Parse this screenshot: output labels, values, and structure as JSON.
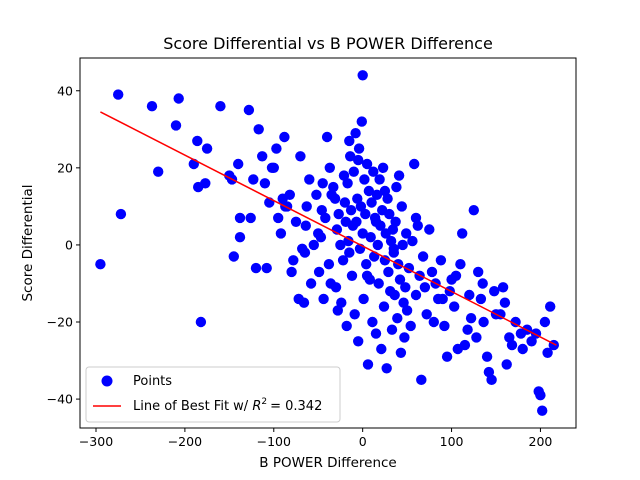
{
  "chart_data": {
    "type": "scatter",
    "title": "Score Differential vs B POWER Difference",
    "xlabel": "B POWER Difference",
    "ylabel": "Score Differential",
    "xlim": [
      -318,
      240
    ],
    "ylim": [
      -47.5,
      48.5
    ],
    "xticks": [
      -300,
      -200,
      -100,
      0,
      100,
      200
    ],
    "yticks": [
      -40,
      -20,
      0,
      20,
      40
    ],
    "grid": false,
    "legend_position": "lower-left",
    "colors": {
      "points": "#0000ff",
      "fit_line": "#ff0000",
      "axes": "#000000"
    },
    "series": [
      {
        "name": "Points",
        "type": "scatter",
        "points": [
          [
            -295,
            -5
          ],
          [
            -275,
            39
          ],
          [
            -272,
            8
          ],
          [
            -237,
            36
          ],
          [
            -230,
            19
          ],
          [
            -207,
            38
          ],
          [
            -190,
            21
          ],
          [
            -186,
            27
          ],
          [
            -185,
            15
          ],
          [
            -182,
            -20
          ],
          [
            -177,
            16
          ],
          [
            -160,
            36
          ],
          [
            -147,
            17
          ],
          [
            -145,
            -3
          ],
          [
            -140,
            21
          ],
          [
            -138,
            2
          ],
          [
            -138,
            7
          ],
          [
            -128,
            35
          ],
          [
            -126,
            7
          ],
          [
            -123,
            17
          ],
          [
            -120,
            -6
          ],
          [
            -117,
            30
          ],
          [
            -113,
            23
          ],
          [
            -110,
            16
          ],
          [
            -108,
            -6
          ],
          [
            -105,
            11
          ],
          [
            -102,
            20
          ],
          [
            -100,
            20
          ],
          [
            -97,
            25
          ],
          [
            -95,
            7
          ],
          [
            -92,
            3
          ],
          [
            -90,
            12
          ],
          [
            -88,
            28
          ],
          [
            -87,
            10
          ],
          [
            -85,
            10
          ],
          [
            -82,
            13
          ],
          [
            -80,
            -7
          ],
          [
            -78,
            -4
          ],
          [
            -72,
            -14
          ],
          [
            -70,
            23
          ],
          [
            -68,
            -1
          ],
          [
            -66,
            -15
          ],
          [
            -64,
            5
          ],
          [
            -63,
            10
          ],
          [
            -60,
            17
          ],
          [
            -58,
            -10
          ],
          [
            -55,
            0
          ],
          [
            -52,
            13
          ],
          [
            -50,
            3
          ],
          [
            -49,
            -7
          ],
          [
            -47,
            2
          ],
          [
            -46,
            9
          ],
          [
            -44,
            -14
          ],
          [
            -42,
            7
          ],
          [
            -40,
            28
          ],
          [
            -38,
            -5
          ],
          [
            -37,
            20
          ],
          [
            -36,
            -10
          ],
          [
            -35,
            13
          ],
          [
            -33,
            15
          ],
          [
            -31,
            12
          ],
          [
            -30,
            -11
          ],
          [
            -29,
            4
          ],
          [
            -28,
            -17
          ],
          [
            -27,
            8
          ],
          [
            -25,
            0
          ],
          [
            -24,
            -15
          ],
          [
            -22,
            -4
          ],
          [
            -21,
            18
          ],
          [
            -20,
            11
          ],
          [
            -19,
            6
          ],
          [
            -18,
            -21
          ],
          [
            -17,
            16
          ],
          [
            -16,
            1
          ],
          [
            -15,
            -2
          ],
          [
            -14,
            23
          ],
          [
            -13,
            9
          ],
          [
            -12,
            -8
          ],
          [
            -11,
            5
          ],
          [
            -10,
            19
          ],
          [
            -9,
            -18
          ],
          [
            -8,
            29
          ],
          [
            -7,
            6
          ],
          [
            -6,
            12
          ],
          [
            -5,
            -25
          ],
          [
            -4,
            25
          ],
          [
            -3,
            -1
          ],
          [
            -2,
            10
          ],
          [
            -1,
            32
          ],
          [
            0,
            44
          ],
          [
            0,
            3
          ],
          [
            1,
            -14
          ],
          [
            2,
            17
          ],
          [
            3,
            8
          ],
          [
            4,
            -5
          ],
          [
            5,
            21
          ],
          [
            6,
            -31
          ],
          [
            7,
            14
          ],
          [
            8,
            -9
          ],
          [
            9,
            2
          ],
          [
            10,
            11
          ],
          [
            11,
            -20
          ],
          [
            12,
            19
          ],
          [
            13,
            -3
          ],
          [
            14,
            7
          ],
          [
            15,
            -23
          ],
          [
            16,
            13
          ],
          [
            17,
            0
          ],
          [
            18,
            -10
          ],
          [
            19,
            17
          ],
          [
            20,
            5
          ],
          [
            21,
            -27
          ],
          [
            22,
            9
          ],
          [
            23,
            20
          ],
          [
            24,
            -16
          ],
          [
            25,
            -4
          ],
          [
            26,
            3
          ],
          [
            27,
            -32
          ],
          [
            28,
            12
          ],
          [
            29,
            -7
          ],
          [
            30,
            8
          ],
          [
            31,
            -12
          ],
          [
            32,
            1
          ],
          [
            33,
            -22
          ],
          [
            34,
            4
          ],
          [
            35,
            -2
          ],
          [
            36,
            -13
          ],
          [
            37,
            6
          ],
          [
            38,
            15
          ],
          [
            39,
            -19
          ],
          [
            40,
            -5
          ],
          [
            41,
            18
          ],
          [
            42,
            -9
          ],
          [
            43,
            -28
          ],
          [
            44,
            10
          ],
          [
            45,
            0
          ],
          [
            46,
            -15
          ],
          [
            47,
            -24
          ],
          [
            48,
            -11
          ],
          [
            49,
            3
          ],
          [
            50,
            -17
          ],
          [
            52,
            -6
          ],
          [
            54,
            -21
          ],
          [
            56,
            1
          ],
          [
            58,
            21
          ],
          [
            60,
            -13
          ],
          [
            62,
            5
          ],
          [
            64,
            -8
          ],
          [
            66,
            -35
          ],
          [
            68,
            -3
          ],
          [
            70,
            -11
          ],
          [
            72,
            -18
          ],
          [
            75,
            4
          ],
          [
            78,
            -7
          ],
          [
            82,
            -10
          ],
          [
            85,
            -14
          ],
          [
            88,
            -4
          ],
          [
            92,
            -21
          ],
          [
            95,
            -29
          ],
          [
            98,
            -12
          ],
          [
            100,
            -9
          ],
          [
            103,
            -16
          ],
          [
            107,
            -27
          ],
          [
            110,
            -5
          ],
          [
            112,
            3
          ],
          [
            115,
            -26
          ],
          [
            118,
            -22
          ],
          [
            120,
            -13
          ],
          [
            122,
            -19
          ],
          [
            125,
            9
          ],
          [
            128,
            -24
          ],
          [
            130,
            -7
          ],
          [
            133,
            -14
          ],
          [
            136,
            -20
          ],
          [
            140,
            -29
          ],
          [
            142,
            -33
          ],
          [
            145,
            -35
          ],
          [
            148,
            -12
          ],
          [
            150,
            -18
          ],
          [
            155,
            -18
          ],
          [
            158,
            -11
          ],
          [
            162,
            -31
          ],
          [
            165,
            -24
          ],
          [
            168,
            -26
          ],
          [
            172,
            -20
          ],
          [
            178,
            -23
          ],
          [
            185,
            -22
          ],
          [
            190,
            -25
          ],
          [
            195,
            -23
          ],
          [
            198,
            -38
          ],
          [
            200,
            -39
          ],
          [
            202,
            -43
          ],
          [
            205,
            -20
          ],
          [
            208,
            -28
          ],
          [
            211,
            -16
          ],
          [
            215,
            -26
          ],
          [
            -210,
            31
          ],
          [
            -175,
            25
          ],
          [
            -150,
            18
          ],
          [
            -75,
            6
          ],
          [
            -65,
            -2
          ],
          [
            -45,
            16
          ],
          [
            -15,
            27
          ],
          [
            -5,
            22
          ],
          [
            5,
            -8
          ],
          [
            15,
            6
          ],
          [
            25,
            14
          ],
          [
            35,
            -1
          ],
          [
            60,
            7
          ],
          [
            80,
            -20
          ],
          [
            90,
            -14
          ],
          [
            105,
            -8
          ],
          [
            135,
            -10
          ],
          [
            160,
            -15
          ],
          [
            180,
            -27
          ]
        ]
      },
      {
        "name": "Line of Best Fit w/ R² = 0.342",
        "type": "line",
        "slope": -0.118,
        "intercept": -0.29,
        "x_range": [
          -295,
          218
        ]
      }
    ],
    "legend": {
      "points_label": "Points",
      "line_label_prefix": "Line of Best Fit w/ ",
      "line_label_r2": "= 0.342"
    }
  }
}
